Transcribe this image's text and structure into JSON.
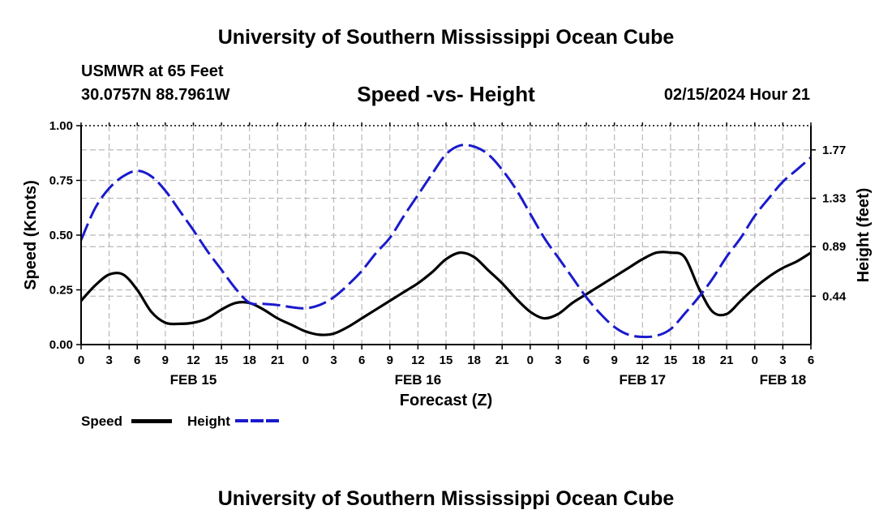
{
  "header": {
    "title": "University of Southern Mississippi Ocean Cube",
    "station": "USMWR at 65 Feet",
    "coords": "30.0757N  88.7961W",
    "subtitle": "Speed -vs- Height",
    "datetime": "02/15/2024 Hour 21"
  },
  "footer": {
    "title": "University of Southern Mississippi Ocean Cube"
  },
  "colors": {
    "speed": "#000000",
    "height": "#1a1acc",
    "grid": "#b8b8b8"
  },
  "legend": {
    "speed_label": "Speed",
    "height_label": "Height"
  },
  "chart_data": {
    "type": "line",
    "title": "Speed -vs- Height",
    "xlabel": "Forecast (Z)",
    "ylabel": "Speed (Knots)",
    "y2label": "Height (feet)",
    "x_unit": "hours since FEB 15 00Z",
    "xlim": [
      0,
      78
    ],
    "ylim": [
      0,
      1.0
    ],
    "y2lim": [
      0,
      1.99
    ],
    "x_ticks": [
      {
        "x": 0,
        "label": "0"
      },
      {
        "x": 3,
        "label": "3"
      },
      {
        "x": 6,
        "label": "6"
      },
      {
        "x": 9,
        "label": "9"
      },
      {
        "x": 12,
        "label": "12"
      },
      {
        "x": 15,
        "label": "15"
      },
      {
        "x": 18,
        "label": "18"
      },
      {
        "x": 21,
        "label": "21"
      },
      {
        "x": 24,
        "label": "0"
      },
      {
        "x": 27,
        "label": "3"
      },
      {
        "x": 30,
        "label": "6"
      },
      {
        "x": 33,
        "label": "9"
      },
      {
        "x": 36,
        "label": "12"
      },
      {
        "x": 39,
        "label": "15"
      },
      {
        "x": 42,
        "label": "18"
      },
      {
        "x": 45,
        "label": "21"
      },
      {
        "x": 48,
        "label": "0"
      },
      {
        "x": 51,
        "label": "3"
      },
      {
        "x": 54,
        "label": "6"
      },
      {
        "x": 57,
        "label": "9"
      },
      {
        "x": 60,
        "label": "12"
      },
      {
        "x": 63,
        "label": "15"
      },
      {
        "x": 66,
        "label": "18"
      },
      {
        "x": 69,
        "label": "21"
      },
      {
        "x": 72,
        "label": "0"
      },
      {
        "x": 75,
        "label": "3"
      },
      {
        "x": 78,
        "label": "6"
      }
    ],
    "date_labels": [
      {
        "x": 12,
        "label": "FEB 15"
      },
      {
        "x": 36,
        "label": "FEB 16"
      },
      {
        "x": 60,
        "label": "FEB 17"
      },
      {
        "x": 75,
        "label": "FEB 18"
      }
    ],
    "y_ticks": [
      "0.00",
      "0.25",
      "0.50",
      "0.75",
      "1.00"
    ],
    "y2_ticks": [
      {
        "value": 0.44,
        "label": "0.44"
      },
      {
        "value": 0.89,
        "label": "0.89"
      },
      {
        "value": 1.33,
        "label": "1.33"
      },
      {
        "value": 1.77,
        "label": "1.77"
      }
    ],
    "series": [
      {
        "name": "Speed",
        "axis": "left",
        "style": "solid",
        "x": [
          0,
          1.5,
          3,
          4.5,
          6,
          7.5,
          9,
          10.5,
          12,
          13.5,
          15,
          16.5,
          18,
          19.5,
          21,
          22.5,
          24,
          25.5,
          27,
          28.5,
          30,
          31.5,
          33,
          34.5,
          36,
          37.5,
          39,
          40.5,
          42,
          43.5,
          45,
          46.5,
          48,
          49.5,
          51,
          52.5,
          54,
          55.5,
          57,
          58.5,
          60,
          61.5,
          63,
          64.5,
          66,
          67.5,
          69,
          70.5,
          72,
          73.5,
          75,
          76.5,
          78
        ],
        "values": [
          0.2,
          0.27,
          0.32,
          0.32,
          0.25,
          0.15,
          0.1,
          0.095,
          0.1,
          0.12,
          0.16,
          0.19,
          0.19,
          0.16,
          0.12,
          0.09,
          0.06,
          0.045,
          0.05,
          0.08,
          0.12,
          0.16,
          0.2,
          0.24,
          0.28,
          0.33,
          0.39,
          0.42,
          0.4,
          0.34,
          0.28,
          0.21,
          0.15,
          0.12,
          0.14,
          0.19,
          0.23,
          0.27,
          0.31,
          0.35,
          0.39,
          0.42,
          0.42,
          0.4,
          0.26,
          0.15,
          0.14,
          0.2,
          0.26,
          0.31,
          0.35,
          0.38,
          0.42
        ]
      },
      {
        "name": "Height",
        "axis": "right",
        "style": "dashed",
        "x": [
          0,
          1.5,
          3,
          4.5,
          6,
          7.5,
          9,
          10.5,
          12,
          13.5,
          15,
          16.5,
          18,
          19.5,
          21,
          22.5,
          24,
          25.5,
          27,
          28.5,
          30,
          31.5,
          33,
          34.5,
          36,
          37.5,
          39,
          40.5,
          42,
          43.5,
          45,
          46.5,
          48,
          49.5,
          51,
          52.5,
          54,
          55.5,
          57,
          58.5,
          60,
          61.5,
          63,
          64.5,
          66,
          67.5,
          69,
          70.5,
          72,
          73.5,
          75,
          76.5,
          78
        ],
        "values": [
          0.95,
          1.24,
          1.42,
          1.53,
          1.58,
          1.53,
          1.4,
          1.22,
          1.04,
          0.85,
          0.68,
          0.51,
          0.38,
          0.37,
          0.36,
          0.34,
          0.33,
          0.36,
          0.43,
          0.54,
          0.67,
          0.83,
          0.97,
          1.17,
          1.36,
          1.55,
          1.73,
          1.81,
          1.8,
          1.73,
          1.59,
          1.41,
          1.19,
          0.97,
          0.79,
          0.61,
          0.43,
          0.28,
          0.16,
          0.09,
          0.07,
          0.08,
          0.14,
          0.28,
          0.43,
          0.6,
          0.8,
          0.97,
          1.17,
          1.33,
          1.48,
          1.59,
          1.7
        ]
      }
    ]
  }
}
